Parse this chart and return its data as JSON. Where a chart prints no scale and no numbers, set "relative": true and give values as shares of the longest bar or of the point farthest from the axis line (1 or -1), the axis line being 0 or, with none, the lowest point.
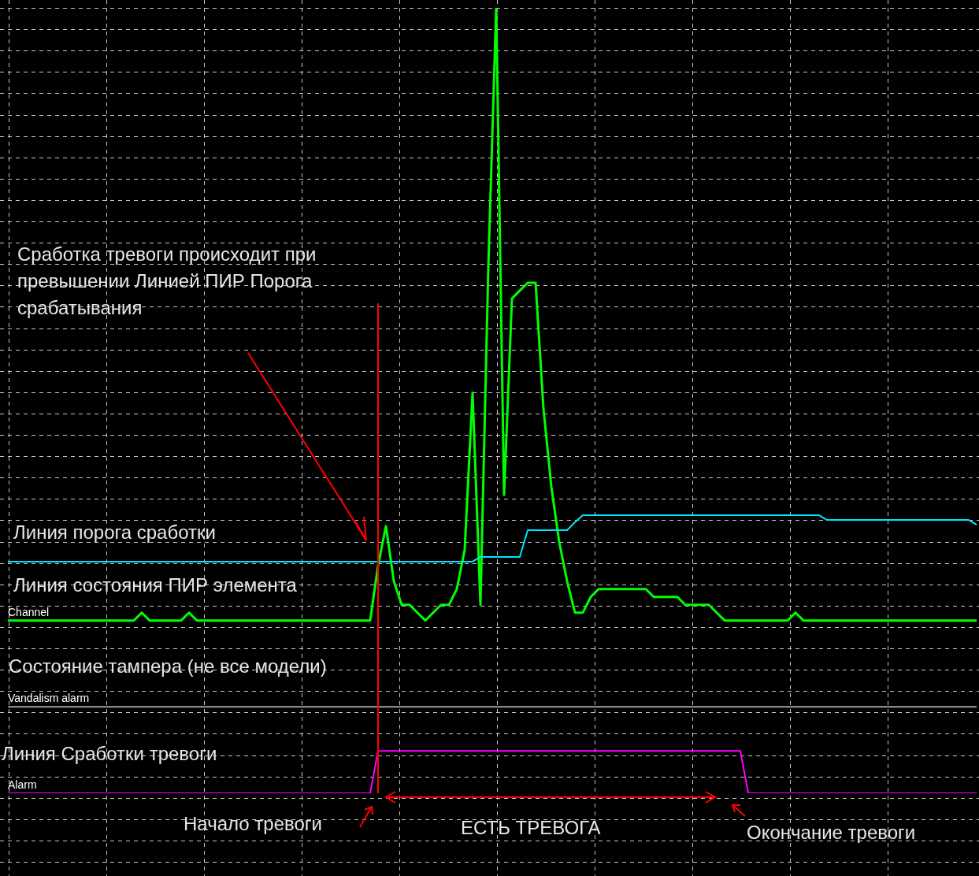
{
  "chart_data": {
    "type": "line",
    "relative": true,
    "grid": true,
    "categories": [
      null,
      null,
      null,
      null,
      null,
      null,
      null,
      null,
      null,
      null,
      null,
      null,
      null,
      null,
      null,
      null,
      null,
      null,
      null,
      null,
      null,
      null,
      null,
      null,
      null,
      null,
      null,
      null,
      null,
      null,
      null,
      null,
      null,
      null,
      null,
      null,
      null,
      null,
      null,
      null,
      null,
      null,
      null,
      null,
      null,
      null,
      null,
      null,
      null,
      null,
      null,
      null,
      null,
      null,
      null,
      null,
      null,
      null,
      null,
      null,
      null,
      null,
      null,
      null,
      null,
      null,
      null,
      null,
      null,
      null,
      null,
      null,
      null,
      null,
      null,
      null,
      null,
      null,
      null,
      null,
      null,
      null,
      null,
      null,
      null,
      null,
      null,
      null,
      null,
      null,
      null,
      null,
      null,
      null,
      null,
      null,
      null,
      null,
      null,
      null,
      null,
      null,
      null,
      null,
      null,
      null,
      null,
      null,
      null,
      null,
      null,
      null,
      null,
      null,
      null,
      null,
      null,
      null,
      null,
      null,
      null,
      null,
      null,
      null
    ],
    "series": [
      {
        "color": "#00e5ff",
        "values": [
          0.295,
          0.295,
          0.295,
          0.295,
          0.295,
          0.295,
          0.295,
          0.295,
          0.295,
          0.295,
          0.295,
          0.295,
          0.295,
          0.295,
          0.295,
          0.295,
          0.295,
          0.295,
          0.295,
          0.295,
          0.295,
          0.295,
          0.295,
          0.295,
          0.295,
          0.295,
          0.295,
          0.295,
          0.295,
          0.295,
          0.295,
          0.295,
          0.295,
          0.295,
          0.295,
          0.295,
          0.295,
          0.295,
          0.295,
          0.295,
          0.295,
          0.295,
          0.295,
          0.295,
          0.295,
          0.295,
          0.295,
          0.295,
          0.295,
          0.295,
          0.295,
          0.295,
          0.295,
          0.295,
          0.295,
          0.295,
          0.295,
          0.295,
          0.295,
          0.295,
          0.301,
          0.301,
          0.301,
          0.301,
          0.301,
          0.301,
          0.335,
          0.335,
          0.335,
          0.335,
          0.335,
          0.335,
          0.345,
          0.354,
          0.354,
          0.354,
          0.354,
          0.354,
          0.354,
          0.354,
          0.354,
          0.354,
          0.354,
          0.354,
          0.354,
          0.354,
          0.354,
          0.354,
          0.354,
          0.354,
          0.354,
          0.354,
          0.354,
          0.354,
          0.354,
          0.354,
          0.354,
          0.354,
          0.354,
          0.354,
          0.354,
          0.354,
          0.354,
          0.354,
          0.348,
          0.348,
          0.348,
          0.348,
          0.348,
          0.348,
          0.348,
          0.348,
          0.348,
          0.348,
          0.348,
          0.348,
          0.348,
          0.348,
          0.348,
          0.348,
          0.348,
          0.348,
          0.348,
          0.342
        ]
      },
      {
        "name": "Channel",
        "color": "#00ff00",
        "values": [
          0.22,
          0.22,
          0.22,
          0.22,
          0.22,
          0.22,
          0.22,
          0.22,
          0.22,
          0.22,
          0.22,
          0.22,
          0.22,
          0.22,
          0.22,
          0.22,
          0.22,
          0.23,
          0.22,
          0.22,
          0.22,
          0.22,
          0.22,
          0.23,
          0.22,
          0.22,
          0.22,
          0.22,
          0.22,
          0.22,
          0.22,
          0.22,
          0.22,
          0.22,
          0.22,
          0.22,
          0.22,
          0.22,
          0.22,
          0.22,
          0.22,
          0.22,
          0.22,
          0.22,
          0.22,
          0.22,
          0.22,
          0.29,
          0.34,
          0.27,
          0.24,
          0.24,
          0.23,
          0.22,
          0.23,
          0.24,
          0.24,
          0.26,
          0.31,
          0.51,
          0.24,
          0.67,
          1,
          0.38,
          0.63,
          0.64,
          0.65,
          0.65,
          0.49,
          0.39,
          0.32,
          0.27,
          0.23,
          0.23,
          0.25,
          0.26,
          0.26,
          0.26,
          0.26,
          0.26,
          0.26,
          0.26,
          0.25,
          0.25,
          0.25,
          0.25,
          0.24,
          0.24,
          0.24,
          0.24,
          0.23,
          0.22,
          0.22,
          0.22,
          0.22,
          0.22,
          0.22,
          0.22,
          0.22,
          0.22,
          0.23,
          0.22,
          0.22,
          0.22,
          0.22,
          0.22,
          0.22,
          0.22,
          0.22,
          0.22,
          0.22,
          0.22,
          0.22,
          0.22,
          0.22,
          0.22,
          0.22,
          0.22,
          0.22,
          0.22,
          0.22,
          0.22,
          0.22,
          0.22
        ]
      },
      {
        "name": "Vandalism alarm",
        "color": "#a0a0a0",
        "values": [
          0.11,
          0.11,
          0.11,
          0.11,
          0.11,
          0.11,
          0.11,
          0.11,
          0.11,
          0.11,
          0.11,
          0.11,
          0.11,
          0.11,
          0.11,
          0.11,
          0.11,
          0.11,
          0.11,
          0.11,
          0.11,
          0.11,
          0.11,
          0.11,
          0.11,
          0.11,
          0.11,
          0.11,
          0.11,
          0.11,
          0.11,
          0.11,
          0.11,
          0.11,
          0.11,
          0.11,
          0.11,
          0.11,
          0.11,
          0.11,
          0.11,
          0.11,
          0.11,
          0.11,
          0.11,
          0.11,
          0.11,
          0.11,
          0.11,
          0.11,
          0.11,
          0.11,
          0.11,
          0.11,
          0.11,
          0.11,
          0.11,
          0.11,
          0.11,
          0.11,
          0.11,
          0.11,
          0.11,
          0.11,
          0.11,
          0.11,
          0.11,
          0.11,
          0.11,
          0.11,
          0.11,
          0.11,
          0.11,
          0.11,
          0.11,
          0.11,
          0.11,
          0.11,
          0.11,
          0.11,
          0.11,
          0.11,
          0.11,
          0.11,
          0.11,
          0.11,
          0.11,
          0.11,
          0.11,
          0.11,
          0.11,
          0.11,
          0.11,
          0.11,
          0.11,
          0.11,
          0.11,
          0.11,
          0.11,
          0.11,
          0.11,
          0.11,
          0.11,
          0.11,
          0.11,
          0.11,
          0.11,
          0.11,
          0.11,
          0.11,
          0.11,
          0.11,
          0.11,
          0.11,
          0.11,
          0.11,
          0.11,
          0.11,
          0.11,
          0.11,
          0.11,
          0.11,
          0.11,
          0.11
        ]
      },
      {
        "name": "Alarm",
        "color": "#ff00ff",
        "values": [
          0,
          0,
          0,
          0,
          0,
          0,
          0,
          0,
          0,
          0,
          0,
          0,
          0,
          0,
          0,
          0,
          0,
          0,
          0,
          0,
          0,
          0,
          0,
          0,
          0,
          0,
          0,
          0,
          0,
          0,
          0,
          0,
          0,
          0,
          0,
          0,
          0,
          0,
          0,
          0,
          0,
          0,
          0,
          0,
          0,
          0,
          0,
          0.054,
          0.054,
          0.054,
          0.054,
          0.054,
          0.054,
          0.054,
          0.054,
          0.054,
          0.054,
          0.054,
          0.054,
          0.054,
          0.054,
          0.054,
          0.054,
          0.054,
          0.054,
          0.054,
          0.054,
          0.054,
          0.054,
          0.054,
          0.054,
          0.054,
          0.054,
          0.054,
          0.054,
          0.054,
          0.054,
          0.054,
          0.054,
          0.054,
          0.054,
          0.054,
          0.054,
          0.054,
          0.054,
          0.054,
          0.054,
          0.054,
          0.054,
          0.054,
          0.054,
          0.054,
          0.054,
          0.054,
          0,
          0,
          0,
          0,
          0,
          0,
          0,
          0,
          0,
          0,
          0,
          0,
          0,
          0,
          0,
          0,
          0,
          0,
          0,
          0,
          0,
          0,
          0,
          0,
          0,
          0,
          0,
          0,
          0,
          0
        ]
      }
    ],
    "annotations": [
      "Сработка тревоги происходит при превышении Линией ПИР Порога срабатывания",
      "Линия порога сработки",
      "Линия состояния ПИР элемента",
      "Состояние тампера (не все модели)",
      "Линия Сработки тревоги",
      "Начало тревоги",
      "ЕСТЬ ТРЕВОГА",
      "Окончание тревоги"
    ]
  }
}
